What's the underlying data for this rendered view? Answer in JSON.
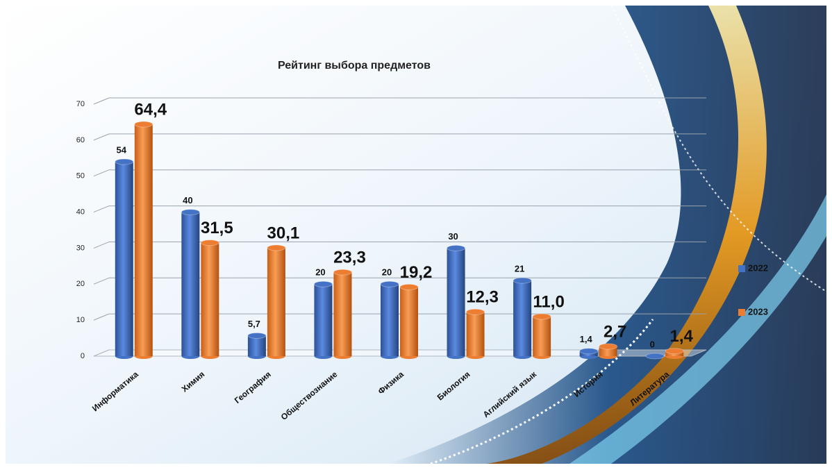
{
  "chart_data": {
    "type": "bar3d",
    "title": "Рейтинг выбора предметов",
    "categories": [
      "Информатика",
      "Химия",
      "География",
      "Обществознание",
      "Физика",
      "Биология",
      "Аглийский язык",
      "История",
      "Литература"
    ],
    "series": [
      {
        "name": "2022",
        "color": "#4472c4",
        "values": [
          54,
          40,
          5.7,
          20,
          20,
          30,
          21,
          1.4,
          0
        ],
        "value_labels": [
          "54",
          "40",
          "5,7",
          "20",
          "20",
          "30",
          "21",
          "1,4",
          "0"
        ]
      },
      {
        "name": "2023",
        "color": "#ed7d31",
        "values": [
          64.4,
          31.5,
          30.1,
          23.3,
          19.2,
          12.3,
          11.0,
          2.7,
          1.4
        ],
        "value_labels": [
          "64,4",
          "31,5",
          "30,1",
          "23,3",
          "19,2",
          "12,3",
          "11,0",
          "2,7",
          "1,4"
        ]
      }
    ],
    "ylim": [
      0,
      70
    ],
    "yticks": [
      0,
      10,
      20,
      30,
      40,
      50,
      60,
      70
    ],
    "grid": true,
    "legend": "right"
  }
}
